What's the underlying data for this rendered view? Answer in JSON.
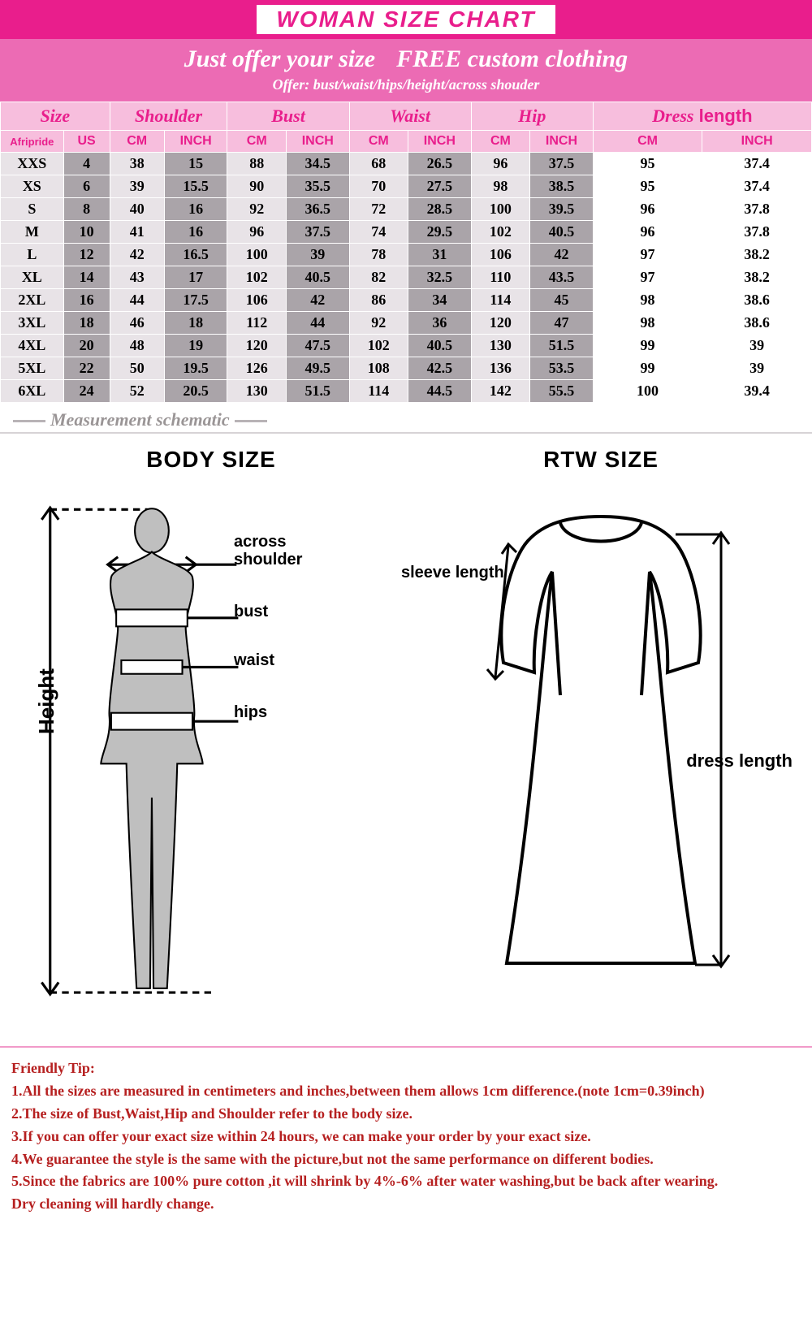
{
  "banner_title": "WOMAN SIZE CHART",
  "subhead_line1_a": "Just offer your size",
  "subhead_line1_b": "FREE custom clothing",
  "subhead_line2": "Offer: bust/waist/hips/height/across shouder",
  "colors": {
    "brand_pink": "#e91e8c",
    "header_pink": "#ec6bb4",
    "cell_pink": "#f7bedd",
    "light_grey": "#e8e3e7",
    "dark_grey": "#aaa4a9",
    "tip_red": "#b62020",
    "schematic_grey": "#9a9596"
  },
  "table": {
    "group_headers": [
      "Size",
      "Shoulder",
      "Bust",
      "Waist",
      "Hip",
      "Dress length"
    ],
    "unit_row": [
      "Afripride",
      "US",
      "CM",
      "INCH",
      "CM",
      "INCH",
      "CM",
      "INCH",
      "CM",
      "INCH",
      "CM",
      "INCH"
    ],
    "rows": [
      {
        "size": "XXS",
        "us": "4",
        "sh_cm": "38",
        "sh_in": "15",
        "bu_cm": "88",
        "bu_in": "34.5",
        "wa_cm": "68",
        "wa_in": "26.5",
        "hi_cm": "96",
        "hi_in": "37.5",
        "dl_cm": "95",
        "dl_in": "37.4"
      },
      {
        "size": "XS",
        "us": "6",
        "sh_cm": "39",
        "sh_in": "15.5",
        "bu_cm": "90",
        "bu_in": "35.5",
        "wa_cm": "70",
        "wa_in": "27.5",
        "hi_cm": "98",
        "hi_in": "38.5",
        "dl_cm": "95",
        "dl_in": "37.4"
      },
      {
        "size": "S",
        "us": "8",
        "sh_cm": "40",
        "sh_in": "16",
        "bu_cm": "92",
        "bu_in": "36.5",
        "wa_cm": "72",
        "wa_in": "28.5",
        "hi_cm": "100",
        "hi_in": "39.5",
        "dl_cm": "96",
        "dl_in": "37.8"
      },
      {
        "size": "M",
        "us": "10",
        "sh_cm": "41",
        "sh_in": "16",
        "bu_cm": "96",
        "bu_in": "37.5",
        "wa_cm": "74",
        "wa_in": "29.5",
        "hi_cm": "102",
        "hi_in": "40.5",
        "dl_cm": "96",
        "dl_in": "37.8"
      },
      {
        "size": "L",
        "us": "12",
        "sh_cm": "42",
        "sh_in": "16.5",
        "bu_cm": "100",
        "bu_in": "39",
        "wa_cm": "78",
        "wa_in": "31",
        "hi_cm": "106",
        "hi_in": "42",
        "dl_cm": "97",
        "dl_in": "38.2"
      },
      {
        "size": "XL",
        "us": "14",
        "sh_cm": "43",
        "sh_in": "17",
        "bu_cm": "102",
        "bu_in": "40.5",
        "wa_cm": "82",
        "wa_in": "32.5",
        "hi_cm": "110",
        "hi_in": "43.5",
        "dl_cm": "97",
        "dl_in": "38.2"
      },
      {
        "size": "2XL",
        "us": "16",
        "sh_cm": "44",
        "sh_in": "17.5",
        "bu_cm": "106",
        "bu_in": "42",
        "wa_cm": "86",
        "wa_in": "34",
        "hi_cm": "114",
        "hi_in": "45",
        "dl_cm": "98",
        "dl_in": "38.6"
      },
      {
        "size": "3XL",
        "us": "18",
        "sh_cm": "46",
        "sh_in": "18",
        "bu_cm": "112",
        "bu_in": "44",
        "wa_cm": "92",
        "wa_in": "36",
        "hi_cm": "120",
        "hi_in": "47",
        "dl_cm": "98",
        "dl_in": "38.6"
      },
      {
        "size": "4XL",
        "us": "20",
        "sh_cm": "48",
        "sh_in": "19",
        "bu_cm": "120",
        "bu_in": "47.5",
        "wa_cm": "102",
        "wa_in": "40.5",
        "hi_cm": "130",
        "hi_in": "51.5",
        "dl_cm": "99",
        "dl_in": "39"
      },
      {
        "size": "5XL",
        "us": "22",
        "sh_cm": "50",
        "sh_in": "19.5",
        "bu_cm": "126",
        "bu_in": "49.5",
        "wa_cm": "108",
        "wa_in": "42.5",
        "hi_cm": "136",
        "hi_in": "53.5",
        "dl_cm": "99",
        "dl_in": "39"
      },
      {
        "size": "6XL",
        "us": "24",
        "sh_cm": "52",
        "sh_in": "20.5",
        "bu_cm": "130",
        "bu_in": "51.5",
        "wa_cm": "114",
        "wa_in": "44.5",
        "hi_cm": "142",
        "hi_in": "55.5",
        "dl_cm": "100",
        "dl_in": "39.4"
      }
    ]
  },
  "schematic_label": "Measurement  schematic",
  "diagram_body_title": "BODY SIZE",
  "diagram_rtw_title": "RTW  SIZE",
  "labels": {
    "height": "Height",
    "across_shoulder": "across\nshoulder",
    "bust": "bust",
    "waist": "waist",
    "hips": "hips",
    "sleeve_length": "sleeve length",
    "dress_length": "dress length"
  },
  "tips_heading": "Friendly Tip:",
  "tips": [
    "1.All the sizes are measured in centimeters and inches,between them allows 1cm difference.(note 1cm=0.39inch)",
    "2.The size of Bust,Waist,Hip and Shoulder refer to the body size.",
    "3.If you can offer your exact size within 24 hours, we can make your order by your exact size.",
    "4.We guarantee the style is the same with the picture,but not the same performance on different bodies.",
    "5.Since the fabrics are 100% pure cotton ,it will shrink by 4%-6% after water washing,but be back after wearing.",
    "   Dry cleaning will hardly change."
  ]
}
